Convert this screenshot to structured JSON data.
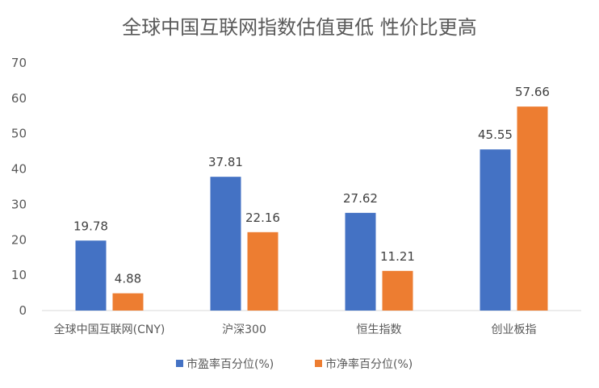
{
  "chart_data": {
    "type": "bar",
    "title": "全球中国互联网指数估值更低  性价比更高",
    "xlabel": "",
    "ylabel": "",
    "categories": [
      "全球中国互联网(CNY)",
      "沪深300",
      "恒生指数",
      "创业板指"
    ],
    "series": [
      {
        "name": "市盈率百分位(%)",
        "color": "#4472C4",
        "values": [
          19.78,
          37.81,
          27.62,
          45.55
        ],
        "labels": [
          "19.78",
          "37.81",
          "27.62",
          "45.55"
        ]
      },
      {
        "name": "市净率百分位(%)",
        "color": "#ED7D31",
        "values": [
          4.88,
          22.16,
          11.21,
          57.66
        ],
        "labels": [
          "4.88",
          "22.16",
          "11.21",
          "57.66"
        ]
      }
    ],
    "ylim": [
      0,
      70
    ],
    "yticks": [
      "0",
      "10",
      "20",
      "30",
      "40",
      "50",
      "60",
      "70"
    ],
    "grid": false,
    "legend_position": "bottom"
  }
}
